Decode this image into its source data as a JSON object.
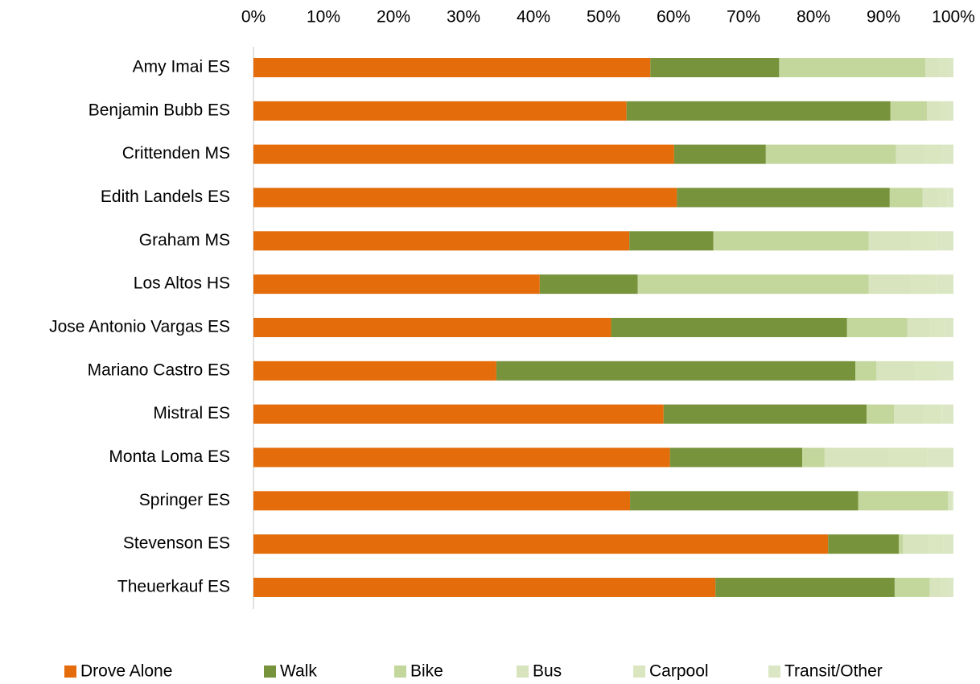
{
  "chart_data": {
    "type": "stacked_bar_horizontal",
    "categories": [
      "Amy Imai ES",
      "Benjamin Bubb ES",
      "Crittenden MS",
      "Edith Landels ES",
      "Graham MS",
      "Los Altos HS",
      "Jose Antonio Vargas ES",
      "Mariano Castro ES",
      "Mistral ES",
      "Monta Loma ES",
      "Springer ES",
      "Stevenson ES",
      "Theuerkauf ES"
    ],
    "series": [
      {
        "name": "Drove Alone",
        "color": "#e46c0a",
        "values": [
          56.7,
          53.3,
          60.1,
          60.5,
          53.7,
          40.9,
          51.1,
          34.7,
          58.6,
          59.5,
          53.8,
          82.1,
          66.0
        ]
      },
      {
        "name": "Walk",
        "color": "#77933c",
        "values": [
          18.4,
          37.7,
          13.1,
          30.4,
          12.0,
          14.0,
          33.7,
          51.3,
          29.0,
          18.9,
          32.6,
          10.1,
          25.6
        ]
      },
      {
        "name": "Bike",
        "color": "#c3d69b",
        "values": [
          20.9,
          5.2,
          18.6,
          4.7,
          22.2,
          33.0,
          8.6,
          3.0,
          3.9,
          3.2,
          12.8,
          0.6,
          5.0
        ]
      },
      {
        "name": "Bus",
        "color": "#d7e4bd",
        "values": [
          2.0,
          1.9,
          4.1,
          2.2,
          6.0,
          6.0,
          3.3,
          5.5,
          4.2,
          9.2,
          0.4,
          3.6,
          1.7
        ]
      },
      {
        "name": "Carpool",
        "color": "#d9e6c0",
        "values": [
          1.2,
          1.1,
          2.5,
          1.3,
          3.6,
          3.6,
          2.0,
          3.3,
          2.6,
          5.5,
          0.2,
          2.2,
          1.0
        ]
      },
      {
        "name": "Transit/Other",
        "color": "#dbe7c4",
        "values": [
          0.8,
          0.8,
          1.6,
          0.9,
          2.5,
          2.5,
          1.3,
          2.2,
          1.7,
          3.7,
          0.2,
          1.4,
          0.7
        ]
      }
    ],
    "xlim": [
      0,
      100
    ],
    "xticks": [
      {
        "value": 0,
        "label": "0%"
      },
      {
        "value": 10,
        "label": "10%"
      },
      {
        "value": 20,
        "label": "20%"
      },
      {
        "value": 30,
        "label": "30%"
      },
      {
        "value": 40,
        "label": "40%"
      },
      {
        "value": 50,
        "label": "50%"
      },
      {
        "value": 60,
        "label": "60%"
      },
      {
        "value": 70,
        "label": "70%"
      },
      {
        "value": 80,
        "label": "80%"
      },
      {
        "value": 90,
        "label": "90%"
      },
      {
        "value": 100,
        "label": "100%"
      }
    ]
  }
}
